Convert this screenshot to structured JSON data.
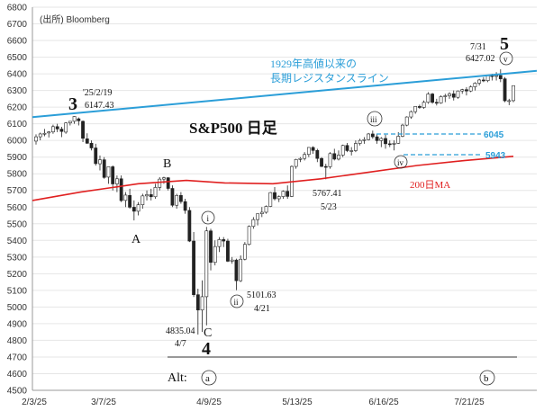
{
  "chart_data": {
    "type": "candlestick",
    "title": "S&P500 日足",
    "source": "(出所) Bloomberg",
    "ylim": [
      4500,
      6800
    ],
    "y_ticks": [
      4500,
      4600,
      4700,
      4800,
      4900,
      5000,
      5100,
      5200,
      5300,
      5400,
      5500,
      5600,
      5700,
      5800,
      5900,
      6000,
      6100,
      6200,
      6300,
      6400,
      6500,
      6600,
      6700,
      6800
    ],
    "x_ticks": [
      "2/3/25",
      "3/7/25",
      "4/9/25",
      "5/13/25",
      "6/16/25",
      "7/21/25"
    ],
    "grid": true,
    "series": [
      {
        "name": "1929年高値以来の長期レジスタンスライン",
        "label_lines": [
          "1929年高値以来の",
          "長期レジスタンスライン"
        ],
        "color": "#2b9ed8",
        "points": [
          [
            0,
            6140
          ],
          [
            1,
            6418
          ]
        ]
      },
      {
        "name": "200日MA",
        "color": "#e02020",
        "points": [
          [
            0,
            5640
          ],
          [
            0.1,
            5690
          ],
          [
            0.22,
            5740
          ],
          [
            0.32,
            5760
          ],
          [
            0.4,
            5745
          ],
          [
            0.5,
            5740
          ],
          [
            0.6,
            5770
          ],
          [
            0.7,
            5810
          ],
          [
            0.8,
            5850
          ],
          [
            0.9,
            5880
          ],
          [
            1.0,
            5905
          ]
        ]
      }
    ],
    "candles": [
      [
        5996,
        6037,
        5975,
        6022
      ],
      [
        6022,
        6047,
        6001,
        6039
      ],
      [
        6039,
        6069,
        6025,
        6043
      ],
      [
        6045,
        6056,
        6018,
        6051
      ],
      [
        6051,
        6095,
        6040,
        6083
      ],
      [
        6083,
        6100,
        6050,
        6069
      ],
      [
        6068,
        6082,
        6020,
        6054
      ],
      [
        6050,
        6110,
        6040,
        6105
      ],
      [
        6105,
        6115,
        6090,
        6115
      ],
      [
        6115,
        6147,
        6100,
        6144
      ],
      [
        6130,
        6138,
        6090,
        6118
      ],
      [
        6115,
        6120,
        5990,
        6013
      ],
      [
        6010,
        6043,
        5980,
        5983
      ],
      [
        5983,
        6000,
        5940,
        5955
      ],
      [
        5955,
        5980,
        5849,
        5861
      ],
      [
        5860,
        5910,
        5820,
        5884
      ],
      [
        5884,
        5900,
        5770,
        5778
      ],
      [
        5780,
        5840,
        5740,
        5842
      ],
      [
        5842,
        5850,
        5700,
        5739
      ],
      [
        5739,
        5790,
        5690,
        5770
      ],
      [
        5770,
        5790,
        5630,
        5639
      ],
      [
        5640,
        5690,
        5600,
        5672
      ],
      [
        5670,
        5710,
        5590,
        5599
      ],
      [
        5599,
        5640,
        5520,
        5575
      ],
      [
        5575,
        5630,
        5550,
        5614
      ],
      [
        5614,
        5680,
        5590,
        5667
      ],
      [
        5667,
        5700,
        5640,
        5675
      ],
      [
        5675,
        5710,
        5640,
        5662
      ],
      [
        5662,
        5740,
        5650,
        5718
      ],
      [
        5718,
        5780,
        5700,
        5768
      ],
      [
        5768,
        5782,
        5740,
        5776
      ],
      [
        5776,
        5780,
        5700,
        5712
      ],
      [
        5712,
        5730,
        5600,
        5611
      ],
      [
        5611,
        5680,
        5590,
        5670
      ],
      [
        5670,
        5690,
        5620,
        5633
      ],
      [
        5633,
        5650,
        5560,
        5580
      ],
      [
        5580,
        5600,
        5390,
        5396
      ],
      [
        5396,
        5450,
        5060,
        5074
      ],
      [
        5074,
        5110,
        4835,
        4982
      ],
      [
        4982,
        5160,
        4850,
        5062
      ],
      [
        5062,
        5481,
        4890,
        5457
      ],
      [
        5457,
        5470,
        5220,
        5268
      ],
      [
        5268,
        5400,
        5250,
        5363
      ],
      [
        5363,
        5420,
        5330,
        5405
      ],
      [
        5405,
        5420,
        5360,
        5396
      ],
      [
        5396,
        5410,
        5270,
        5275
      ],
      [
        5275,
        5300,
        5260,
        5282
      ],
      [
        5282,
        5290,
        5101,
        5158
      ],
      [
        5158,
        5310,
        5150,
        5287
      ],
      [
        5287,
        5390,
        5280,
        5376
      ],
      [
        5376,
        5490,
        5370,
        5484
      ],
      [
        5484,
        5540,
        5470,
        5525
      ],
      [
        5525,
        5560,
        5490,
        5560
      ],
      [
        5560,
        5600,
        5540,
        5569
      ],
      [
        5569,
        5610,
        5560,
        5604
      ],
      [
        5604,
        5690,
        5600,
        5687
      ],
      [
        5687,
        5720,
        5640,
        5650
      ],
      [
        5650,
        5670,
        5630,
        5663
      ],
      [
        5663,
        5700,
        5650,
        5695
      ],
      [
        5695,
        5730,
        5650,
        5664
      ],
      [
        5664,
        5850,
        5660,
        5844
      ],
      [
        5844,
        5890,
        5830,
        5886
      ],
      [
        5886,
        5900,
        5870,
        5892
      ],
      [
        5892,
        5930,
        5880,
        5916
      ],
      [
        5916,
        5960,
        5900,
        5958
      ],
      [
        5958,
        5965,
        5920,
        5940
      ],
      [
        5940,
        5950,
        5870,
        5892
      ],
      [
        5892,
        5900,
        5840,
        5844
      ],
      [
        5844,
        5860,
        5767,
        5842
      ],
      [
        5842,
        5930,
        5830,
        5921
      ],
      [
        5921,
        5950,
        5880,
        5888
      ],
      [
        5888,
        5940,
        5880,
        5912
      ],
      [
        5912,
        5975,
        5900,
        5970
      ],
      [
        5970,
        5985,
        5930,
        5939
      ],
      [
        5939,
        5960,
        5910,
        5939
      ],
      [
        5939,
        6000,
        5930,
        5982
      ],
      [
        5982,
        6010,
        5970,
        6000
      ],
      [
        6000,
        6020,
        5980,
        6005
      ],
      [
        6005,
        6045,
        6000,
        6039
      ],
      [
        6039,
        6059,
        6010,
        6022
      ],
      [
        6022,
        6040,
        5980,
        5999
      ],
      [
        5999,
        6020,
        5960,
        6012
      ],
      [
        6012,
        6035,
        5950,
        5980
      ],
      [
        5980,
        6000,
        5960,
        5977
      ],
      [
        5977,
        6000,
        5940,
        5983
      ],
      [
        5983,
        6050,
        5980,
        6025
      ],
      [
        6025,
        6100,
        6020,
        6092
      ],
      [
        6092,
        6145,
        6085,
        6141
      ],
      [
        6141,
        6180,
        6130,
        6173
      ],
      [
        6173,
        6200,
        6160,
        6204
      ],
      [
        6204,
        6215,
        6190,
        6198
      ],
      [
        6198,
        6240,
        6190,
        6229
      ],
      [
        6229,
        6290,
        6220,
        6279
      ],
      [
        6279,
        6285,
        6220,
        6229
      ],
      [
        6229,
        6250,
        6210,
        6225
      ],
      [
        6225,
        6270,
        6220,
        6263
      ],
      [
        6263,
        6280,
        6230,
        6268
      ],
      [
        6268,
        6290,
        6250,
        6280
      ],
      [
        6280,
        6300,
        6240,
        6259
      ],
      [
        6259,
        6300,
        6250,
        6297
      ],
      [
        6297,
        6310,
        6280,
        6305
      ],
      [
        6305,
        6320,
        6270,
        6297
      ],
      [
        6297,
        6330,
        6290,
        6322
      ],
      [
        6322,
        6350,
        6300,
        6344
      ],
      [
        6344,
        6370,
        6330,
        6363
      ],
      [
        6363,
        6380,
        6350,
        6359
      ],
      [
        6359,
        6395,
        6350,
        6389
      ],
      [
        6389,
        6400,
        6360,
        6388
      ],
      [
        6388,
        6410,
        6360,
        6390
      ],
      [
        6390,
        6427,
        6350,
        6370
      ],
      [
        6370,
        6380,
        6230,
        6238
      ],
      [
        6238,
        6250,
        6212,
        6239
      ],
      [
        6239,
        6330,
        6230,
        6329
      ]
    ],
    "levels": [
      {
        "label": "6045",
        "value": 6045,
        "color": "#2b9ed8"
      },
      {
        "label": "5943",
        "value": 5943,
        "color": "#2b9ed8"
      }
    ],
    "annotations": {
      "wave_3": "3",
      "high_1_date": "'25/2/19",
      "high_1_value": "6147.43",
      "wave_A": "A",
      "wave_B": "B",
      "wave_C": "C",
      "wave_4": "4",
      "low_1_value": "4835.04",
      "low_1_date": "4/7",
      "sub_i": "i",
      "sub_ii": "ii",
      "low_2_value": "5101.63",
      "low_2_date": "4/21",
      "low_3_value": "5767.41",
      "low_3_date": "5/23",
      "sub_iii": "iii",
      "sub_iv": "iv",
      "sub_v": "v",
      "wave_5": "5",
      "high_2_date": "7/31",
      "high_2_value": "6427.02",
      "alt_label": "Alt:",
      "alt_a": "a",
      "alt_b": "b"
    }
  }
}
